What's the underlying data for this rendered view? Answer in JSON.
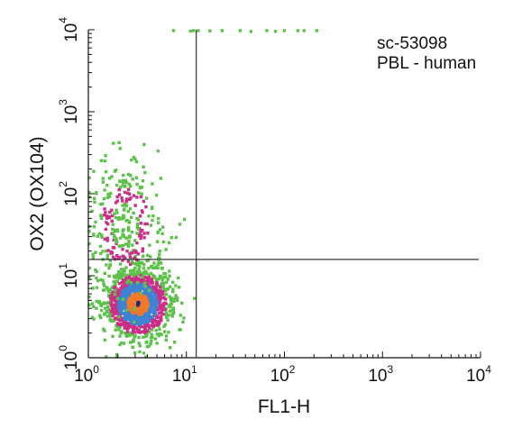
{
  "chart_data": {
    "type": "scatter",
    "subtype": "flow-cytometry density plot (log-log)",
    "xlabel": "FL1-H",
    "ylabel": "OX2 (OX104)",
    "x_scale": "log",
    "y_scale": "log",
    "xlim": [
      1,
      10000
    ],
    "ylim": [
      1,
      10000
    ],
    "x_ticks": [
      {
        "base": "10",
        "exp": "0",
        "value": 1
      },
      {
        "base": "10",
        "exp": "1",
        "value": 10
      },
      {
        "base": "10",
        "exp": "2",
        "value": 100
      },
      {
        "base": "10",
        "exp": "3",
        "value": 1000
      },
      {
        "base": "10",
        "exp": "4",
        "value": 10000
      }
    ],
    "y_ticks": [
      {
        "base": "10",
        "exp": "0",
        "value": 1
      },
      {
        "base": "10",
        "exp": "1",
        "value": 10
      },
      {
        "base": "10",
        "exp": "2",
        "value": 100
      },
      {
        "base": "10",
        "exp": "3",
        "value": 1000
      },
      {
        "base": "10",
        "exp": "4",
        "value": 10000
      }
    ],
    "quadrant_gates": {
      "x": 12.6,
      "y": 15.8
    },
    "annotations": [
      "sc-53098",
      "PBL - human"
    ],
    "grid": false,
    "density_colors": {
      "low": "#5cc24a",
      "mid": "#cc2f86",
      "high": "#3f83d2",
      "peak": "#f07a2a",
      "core": "#1b2a8a"
    },
    "populations": [
      {
        "name": "main cluster",
        "center": [
          3.2,
          4.5
        ],
        "spread_log": [
          0.16,
          0.2
        ],
        "count": 1400
      },
      {
        "name": "upper tail",
        "center": [
          2.4,
          40
        ],
        "spread_log": [
          0.2,
          0.4
        ],
        "count": 320
      },
      {
        "name": "top-edge events",
        "x_range": [
          7,
          250
        ],
        "y": 9500,
        "count": 14
      }
    ]
  }
}
